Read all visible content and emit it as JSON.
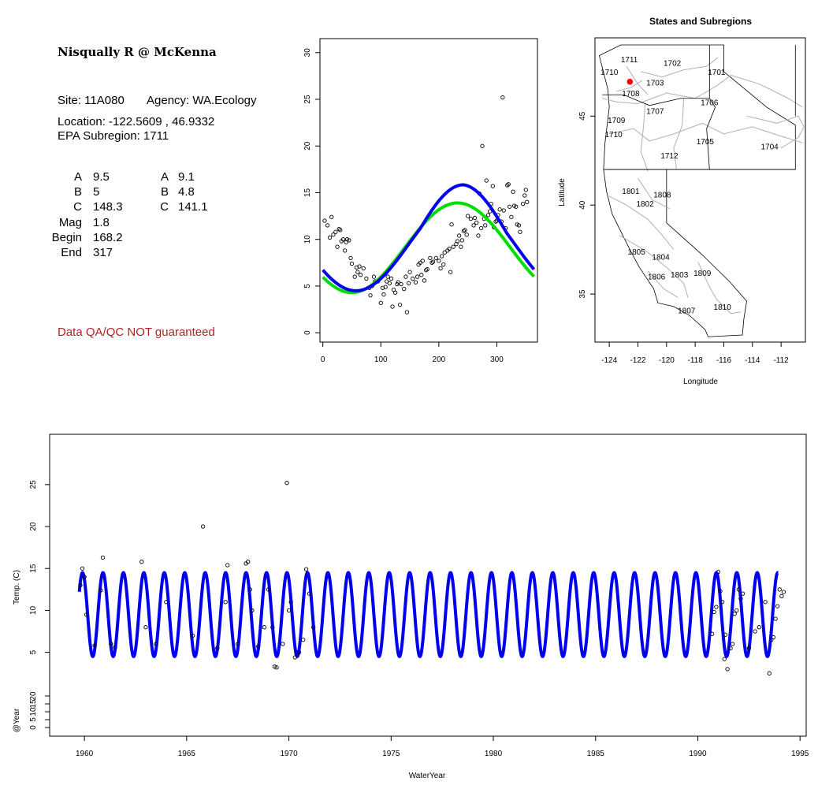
{
  "site": {
    "name": "Nisqually R @ McKenna",
    "site_line": "Site: 11A080",
    "agency_line": "Agency: WA.Ecology",
    "location_line": "Location: -122.5609 , 46.9332",
    "subregion_line": "EPA Subregion: 1711",
    "params_left": [
      {
        "label": "A",
        "value": "9.5"
      },
      {
        "label": "B",
        "value": "5"
      },
      {
        "label": "C",
        "value": "148.3"
      },
      {
        "label": "Mag",
        "value": "1.8"
      },
      {
        "label": "Begin",
        "value": "168.2"
      },
      {
        "label": "End",
        "value": "317"
      }
    ],
    "params_right": [
      {
        "label": "A",
        "value": "9.1"
      },
      {
        "label": "B",
        "value": "4.8"
      },
      {
        "label": "C",
        "value": "141.1"
      }
    ],
    "warning": "Data QA/QC NOT guaranteed",
    "warning_color": "#b22222"
  },
  "chart_data": [
    {
      "id": "seasonal",
      "type": "scatter",
      "title": "",
      "xlabel": "",
      "ylabel": "",
      "xlim": [
        -5,
        370
      ],
      "ylim": [
        -1,
        31.5
      ],
      "xticks": [
        0,
        100,
        200,
        300
      ],
      "yticks": [
        0,
        5,
        10,
        15,
        20,
        25,
        30
      ],
      "points": [
        [
          3,
          12
        ],
        [
          8,
          11.5
        ],
        [
          12,
          10.2
        ],
        [
          15,
          12.4
        ],
        [
          18,
          10.5
        ],
        [
          22,
          10.8
        ],
        [
          25,
          9.2
        ],
        [
          28,
          11.1
        ],
        [
          30,
          11
        ],
        [
          32,
          9.8
        ],
        [
          35,
          10
        ],
        [
          38,
          8.8
        ],
        [
          40,
          9.7
        ],
        [
          42,
          10
        ],
        [
          45,
          9.9
        ],
        [
          48,
          8
        ],
        [
          50,
          7.4
        ],
        [
          55,
          6
        ],
        [
          58,
          7
        ],
        [
          60,
          6.5
        ],
        [
          63,
          7.1
        ],
        [
          65,
          6.2
        ],
        [
          70,
          6.9
        ],
        [
          75,
          5.8
        ],
        [
          80,
          4.8
        ],
        [
          82,
          4
        ],
        [
          85,
          5
        ],
        [
          88,
          6
        ],
        [
          90,
          5.5
        ],
        [
          95,
          5.5
        ],
        [
          100,
          3.2
        ],
        [
          103,
          4.8
        ],
        [
          105,
          4.1
        ],
        [
          108,
          4.9
        ],
        [
          110,
          5.5
        ],
        [
          112,
          6
        ],
        [
          115,
          5.3
        ],
        [
          118,
          5.8
        ],
        [
          120,
          2.8
        ],
        [
          122,
          4.6
        ],
        [
          125,
          4.3
        ],
        [
          128,
          5.2
        ],
        [
          130,
          5.4
        ],
        [
          133,
          3
        ],
        [
          135,
          5.2
        ],
        [
          140,
          4.7
        ],
        [
          143,
          6
        ],
        [
          145,
          2.2
        ],
        [
          148,
          5.3
        ],
        [
          150,
          6.5
        ],
        [
          155,
          5.8
        ],
        [
          160,
          5.4
        ],
        [
          163,
          6
        ],
        [
          165,
          7.3
        ],
        [
          168,
          7.5
        ],
        [
          170,
          6.2
        ],
        [
          172,
          7.7
        ],
        [
          175,
          5.6
        ],
        [
          178,
          6.7
        ],
        [
          180,
          6.8
        ],
        [
          185,
          8
        ],
        [
          188,
          7.5
        ],
        [
          190,
          7.6
        ],
        [
          195,
          8
        ],
        [
          200,
          7.7
        ],
        [
          203,
          6.9
        ],
        [
          205,
          8.2
        ],
        [
          208,
          7.3
        ],
        [
          210,
          8.6
        ],
        [
          215,
          8.8
        ],
        [
          218,
          9
        ],
        [
          220,
          6.5
        ],
        [
          222,
          11.6
        ],
        [
          225,
          9.2
        ],
        [
          230,
          9.5
        ],
        [
          232,
          9.8
        ],
        [
          235,
          10.4
        ],
        [
          238,
          9.2
        ],
        [
          240,
          9.9
        ],
        [
          243,
          10.9
        ],
        [
          245,
          11
        ],
        [
          248,
          10.5
        ],
        [
          250,
          12.5
        ],
        [
          255,
          12.2
        ],
        [
          260,
          11.5
        ],
        [
          262,
          12.3
        ],
        [
          265,
          11.8
        ],
        [
          268,
          10.4
        ],
        [
          270,
          14.9
        ],
        [
          273,
          11.2
        ],
        [
          275,
          20
        ],
        [
          278,
          12.2
        ],
        [
          280,
          11.5
        ],
        [
          282,
          16.3
        ],
        [
          285,
          12.6
        ],
        [
          288,
          13
        ],
        [
          290,
          13.8
        ],
        [
          293,
          15.7
        ],
        [
          295,
          11.3
        ],
        [
          298,
          11.9
        ],
        [
          300,
          12
        ],
        [
          302,
          12.6
        ],
        [
          305,
          13.2
        ],
        [
          308,
          11.9
        ],
        [
          310,
          25.2
        ],
        [
          312,
          13.1
        ],
        [
          315,
          11.2
        ],
        [
          318,
          15.8
        ],
        [
          320,
          15.9
        ],
        [
          322,
          13.5
        ],
        [
          325,
          12.4
        ],
        [
          328,
          15.1
        ],
        [
          330,
          13.6
        ],
        [
          333,
          13.5
        ],
        [
          335,
          11.6
        ],
        [
          338,
          11.5
        ],
        [
          340,
          10.8
        ],
        [
          345,
          13.8
        ],
        [
          348,
          14.7
        ],
        [
          350,
          15.3
        ],
        [
          352,
          14
        ]
      ],
      "series": [
        {
          "color": "#00dd00",
          "A": 9.1,
          "B": 4.8,
          "C": 141.1
        },
        {
          "color": "#0000ee",
          "A": 9.5,
          "B": 5,
          "C": 148.3,
          "Mag": 1.8,
          "Begin": 168.2,
          "End": 317
        }
      ]
    },
    {
      "id": "map",
      "type": "map",
      "title": "States and Subregions",
      "xlabel": "Longitude",
      "ylabel": "Latitude",
      "xlim": [
        -125,
        -110.3
      ],
      "ylim": [
        32.3,
        49.4
      ],
      "xticks": [
        -124,
        -122,
        -120,
        -118,
        -116,
        -114,
        -112
      ],
      "yticks": [
        35,
        40,
        45
      ],
      "site_point": {
        "lon": -122.5609,
        "lat": 46.9332,
        "color": "#ff0000"
      },
      "region_labels": [
        {
          "text": "1711",
          "lon": -122.6,
          "lat": 48.2
        },
        {
          "text": "1702",
          "lon": -119.6,
          "lat": 48.0
        },
        {
          "text": "1701",
          "lon": -116.5,
          "lat": 47.5
        },
        {
          "text": "1710",
          "lon": -124.0,
          "lat": 47.5
        },
        {
          "text": "1703",
          "lon": -120.8,
          "lat": 46.9
        },
        {
          "text": "1708",
          "lon": -122.5,
          "lat": 46.3
        },
        {
          "text": "1706",
          "lon": -117.0,
          "lat": 45.8
        },
        {
          "text": "1707",
          "lon": -120.8,
          "lat": 45.3
        },
        {
          "text": "1709",
          "lon": -123.5,
          "lat": 44.8
        },
        {
          "text": "1710",
          "lon": -123.7,
          "lat": 44.0
        },
        {
          "text": "1705",
          "lon": -117.3,
          "lat": 43.6
        },
        {
          "text": "1704",
          "lon": -112.8,
          "lat": 43.3
        },
        {
          "text": "1712",
          "lon": -119.8,
          "lat": 42.8
        },
        {
          "text": "1801",
          "lon": -122.5,
          "lat": 40.8
        },
        {
          "text": "1808",
          "lon": -120.3,
          "lat": 40.6
        },
        {
          "text": "1802",
          "lon": -121.5,
          "lat": 40.1
        },
        {
          "text": "1805",
          "lon": -122.1,
          "lat": 37.4
        },
        {
          "text": "1804",
          "lon": -120.4,
          "lat": 37.1
        },
        {
          "text": "1806",
          "lon": -120.7,
          "lat": 36.0
        },
        {
          "text": "1803",
          "lon": -119.1,
          "lat": 36.1
        },
        {
          "text": "1809",
          "lon": -117.5,
          "lat": 36.2
        },
        {
          "text": "1807",
          "lon": -118.6,
          "lat": 34.1
        },
        {
          "text": "1810",
          "lon": -116.1,
          "lat": 34.3
        }
      ]
    },
    {
      "id": "timeseries",
      "type": "line",
      "title": "",
      "xlabel": "WaterYear",
      "ylabel": "Temp. (C)",
      "ylabel2": "@Year",
      "xlim": [
        1958.3,
        1995.3
      ],
      "xticks": [
        1960,
        1965,
        1970,
        1975,
        1980,
        1985,
        1990,
        1995
      ],
      "ylim": [
        -5,
        31
      ],
      "yticks": [
        5,
        10,
        15,
        20,
        25
      ],
      "yticks2": [
        0,
        5,
        10,
        15,
        20
      ],
      "fit": {
        "start": 1959.75,
        "end": 1993.92,
        "A": 9.5,
        "B": 5,
        "C": 148.3,
        "color": "#0000ee"
      },
      "points": [
        [
          1959.8,
          13
        ],
        [
          1959.9,
          15
        ],
        [
          1960.0,
          14
        ],
        [
          1960.1,
          9.5
        ],
        [
          1960.5,
          5.8
        ],
        [
          1960.8,
          12.4
        ],
        [
          1960.9,
          16.3
        ],
        [
          1961.3,
          6
        ],
        [
          1961.5,
          5.6
        ],
        [
          1962.8,
          15.8
        ],
        [
          1963.0,
          8
        ],
        [
          1963.5,
          6
        ],
        [
          1964.0,
          11
        ],
        [
          1965.3,
          7
        ],
        [
          1965.8,
          20
        ],
        [
          1966.5,
          5.5
        ],
        [
          1966.9,
          11
        ],
        [
          1967.0,
          15.4
        ],
        [
          1967.5,
          6
        ],
        [
          1967.9,
          15.6
        ],
        [
          1968.0,
          15.8
        ],
        [
          1968.1,
          12.5
        ],
        [
          1968.2,
          10
        ],
        [
          1968.5,
          5.7
        ],
        [
          1968.8,
          8
        ],
        [
          1969.0,
          12.5
        ],
        [
          1969.2,
          8
        ],
        [
          1969.3,
          3.3
        ],
        [
          1969.4,
          3.2
        ],
        [
          1969.7,
          6
        ],
        [
          1969.9,
          25.2
        ],
        [
          1970.0,
          10
        ],
        [
          1970.1,
          11
        ],
        [
          1970.3,
          4.4
        ],
        [
          1970.4,
          5
        ],
        [
          1970.5,
          5
        ],
        [
          1970.7,
          6.5
        ],
        [
          1970.85,
          14.9
        ],
        [
          1971.0,
          12
        ],
        [
          1971.2,
          8
        ],
        [
          1990.7,
          7.2
        ],
        [
          1990.8,
          9.8
        ],
        [
          1990.9,
          10.4
        ],
        [
          1991.0,
          14.6
        ],
        [
          1991.1,
          12.3
        ],
        [
          1991.2,
          11
        ],
        [
          1991.3,
          4.2
        ],
        [
          1991.35,
          7.1
        ],
        [
          1991.45,
          3
        ],
        [
          1991.6,
          5.5
        ],
        [
          1991.7,
          6
        ],
        [
          1991.8,
          9.6
        ],
        [
          1991.9,
          10
        ],
        [
          1992.0,
          12.5
        ],
        [
          1992.1,
          11.4
        ],
        [
          1992.2,
          12
        ],
        [
          1992.5,
          5.5
        ],
        [
          1992.8,
          7.5
        ],
        [
          1993.0,
          8
        ],
        [
          1993.3,
          11
        ],
        [
          1993.5,
          2.5
        ],
        [
          1993.6,
          6.5
        ],
        [
          1993.7,
          6.8
        ],
        [
          1993.8,
          9
        ],
        [
          1993.9,
          10.5
        ],
        [
          1994.0,
          12.5
        ],
        [
          1994.1,
          11.7
        ],
        [
          1994.2,
          12.2
        ]
      ]
    }
  ]
}
